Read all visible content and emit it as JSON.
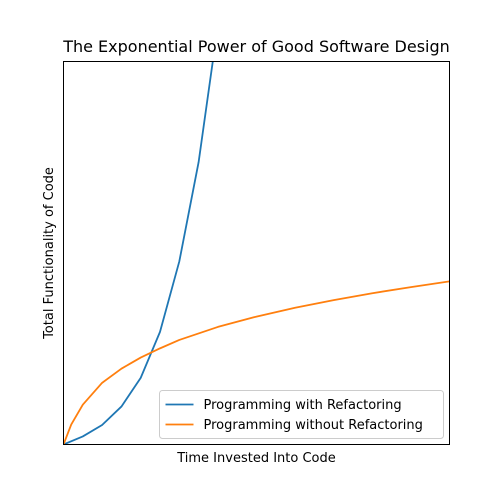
{
  "chart_data": {
    "type": "line",
    "title": "The Exponential Power of Good Software Design",
    "xlabel": "Time Invested Into Code",
    "ylabel": "Total Functionality of Code",
    "x_ticks": "none",
    "y_ticks": "none",
    "grid": false,
    "xlim": [
      0,
      1
    ],
    "ylim": [
      0,
      1
    ],
    "legend_position": "lower right",
    "series": [
      {
        "name": "Programming with Refactoring",
        "color": "#1f77b4",
        "x": [
          0.0,
          0.05,
          0.1,
          0.15,
          0.2,
          0.25,
          0.3,
          0.35,
          0.4,
          0.42
        ],
        "y": [
          0.0,
          0.021,
          0.051,
          0.099,
          0.174,
          0.294,
          0.478,
          0.737,
          1.095,
          1.0
        ]
      },
      {
        "name": "Programming without Refactoring",
        "color": "#ff7f0e",
        "x": [
          0.0,
          0.02,
          0.05,
          0.1,
          0.15,
          0.2,
          0.25,
          0.3,
          0.4,
          0.5,
          0.6,
          0.7,
          0.8,
          0.9,
          1.0
        ],
        "y": [
          0.0,
          0.052,
          0.104,
          0.161,
          0.198,
          0.227,
          0.251,
          0.273,
          0.307,
          0.334,
          0.357,
          0.377,
          0.395,
          0.411,
          0.426
        ]
      }
    ]
  }
}
